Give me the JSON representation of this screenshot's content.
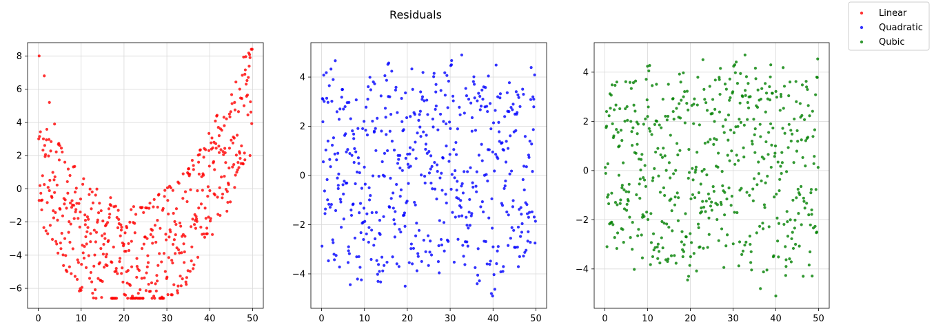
{
  "figure": {
    "title": "Residuals"
  },
  "legend": {
    "placement": "top-right",
    "entries": [
      {
        "label": "Linear",
        "color": "#ff0000"
      },
      {
        "label": "Quadratic",
        "color": "#0000ff"
      },
      {
        "label": "Qubic",
        "color": "#008000"
      }
    ]
  },
  "chart_data": [
    {
      "type": "scatter",
      "series_name": "Linear",
      "color": "#ff0000",
      "xlim": [
        -2.5,
        52.5
      ],
      "ylim": [
        -7.2,
        8.8
      ],
      "xticks": [
        0,
        10,
        20,
        30,
        40,
        50
      ],
      "yticks": [
        -6,
        -4,
        -2,
        0,
        2,
        4,
        6,
        8
      ],
      "grid": true,
      "model": "quadratic trend residual",
      "x": [
        0.2,
        1.4,
        2.6,
        3.8,
        5.0,
        6.2,
        7.4,
        8.6,
        9.8,
        11.0,
        12.2,
        13.4,
        14.6,
        15.8,
        17.0,
        18.2,
        19.4,
        20.6,
        21.8,
        23.0,
        24.2,
        25.4,
        26.6,
        27.8,
        29.0,
        30.2,
        31.4,
        32.6,
        33.8,
        35.0,
        36.2,
        37.4,
        38.6,
        39.8,
        41.0,
        42.2,
        43.4,
        44.6,
        45.8,
        47.0,
        48.2,
        49.4
      ],
      "y": [
        8.0,
        6.8,
        5.2,
        3.9,
        2.6,
        1.6,
        0.8,
        -0.2,
        -1.4,
        -1.9,
        -2.7,
        -3.2,
        -3.6,
        -4.1,
        -4.4,
        -4.8,
        -5.1,
        -5.0,
        -4.7,
        -4.2,
        -3.6,
        -3.0,
        -2.5,
        -1.9,
        -1.3,
        -0.7,
        -0.1,
        0.4,
        0.9,
        1.2,
        1.4,
        1.6,
        1.9,
        2.3,
        2.8,
        3.2,
        3.8,
        4.5,
        5.2,
        6.0,
        6.9,
        7.9
      ]
    },
    {
      "type": "scatter",
      "series_name": "Quadratic",
      "color": "#0000ff",
      "xlim": [
        -2.5,
        52.5
      ],
      "ylim": [
        -5.4,
        5.4
      ],
      "xticks": [
        0,
        10,
        20,
        30,
        40,
        50
      ],
      "yticks": [
        -4,
        -2,
        0,
        2,
        4
      ],
      "grid": true,
      "x": [
        0.3,
        1.5,
        2.7,
        3.9,
        5.1,
        6.3,
        7.5,
        8.7,
        9.9,
        11.1,
        12.3,
        13.5,
        14.7,
        15.9,
        17.1,
        18.3,
        19.5,
        20.7,
        21.9,
        23.1,
        24.3,
        25.5,
        26.7,
        27.9,
        29.1,
        30.3,
        31.5,
        32.7,
        33.9,
        35.1,
        36.3,
        37.5,
        38.7,
        39.9,
        41.1,
        42.3,
        43.5,
        44.7,
        45.9,
        47.1,
        48.3,
        49.5
      ],
      "y": [
        3.1,
        1.4,
        3.9,
        -0.4,
        2.7,
        -2.9,
        1.5,
        -3.3,
        2.2,
        -0.5,
        1.8,
        -3.9,
        0.9,
        3.2,
        -2.5,
        0.3,
        -4.5,
        2.4,
        -1.2,
        3.4,
        -3.1,
        0.8,
        3.7,
        -2.6,
        1.2,
        4.5,
        -0.9,
        4.9,
        -2.7,
        1.8,
        -4.4,
        0.6,
        2.6,
        -4.9,
        3.2,
        -3.9,
        1.1,
        2.9,
        -2.1,
        3.3,
        -1.7,
        3.1
      ]
    },
    {
      "type": "scatter",
      "series_name": "Qubic",
      "color": "#008000",
      "xlim": [
        -2.5,
        52.5
      ],
      "ylim": [
        -5.6,
        5.2
      ],
      "xticks": [
        0,
        10,
        20,
        30,
        40,
        50
      ],
      "yticks": [
        -4,
        -2,
        0,
        2,
        4
      ],
      "grid": true,
      "x": [
        0.4,
        1.6,
        2.8,
        4.0,
        5.2,
        6.4,
        7.6,
        8.8,
        10.0,
        11.2,
        12.4,
        13.6,
        14.8,
        16.0,
        17.2,
        18.4,
        19.6,
        20.8,
        22.0,
        23.2,
        24.4,
        25.6,
        26.8,
        28.0,
        29.2,
        30.4,
        31.6,
        32.8,
        34.0,
        35.2,
        36.4,
        37.6,
        38.8,
        40.0,
        41.2,
        42.4,
        43.6,
        44.8,
        46.0,
        47.2,
        48.4,
        49.6
      ],
      "y": [
        2.4,
        -2.1,
        3.6,
        -0.7,
        2.6,
        -3.2,
        1.5,
        -1.9,
        2.2,
        -3.5,
        0.9,
        2.9,
        -3.6,
        2.4,
        -1.1,
        3.0,
        -4.3,
        2.7,
        -0.9,
        3.3,
        -2.6,
        1.3,
        3.7,
        -1.8,
        0.4,
        4.3,
        -0.8,
        4.7,
        -3.0,
        1.7,
        -4.8,
        -0.5,
        1.9,
        -5.1,
        3.1,
        -3.9,
        1.2,
        2.8,
        -2.2,
        3.4,
        -1.6,
        3.8
      ]
    }
  ]
}
